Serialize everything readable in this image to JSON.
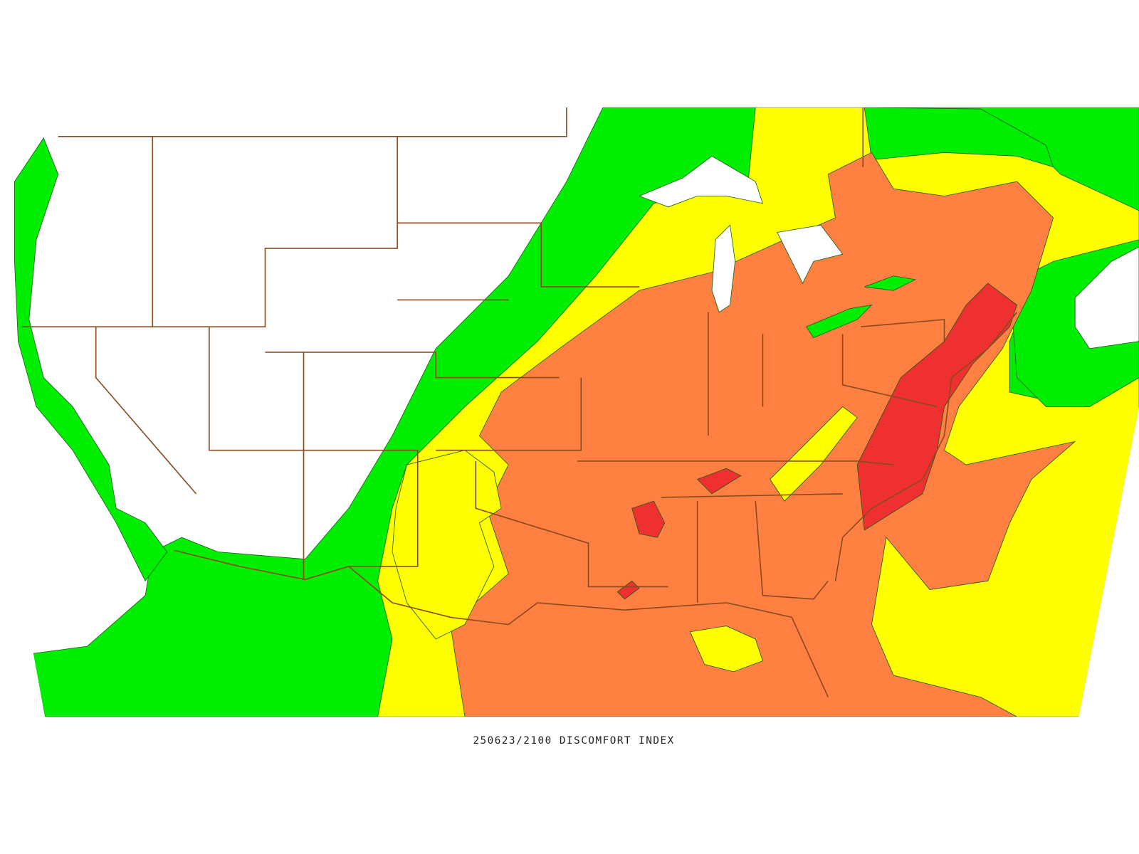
{
  "caption": "250623/2100 DISCOMFORT INDEX"
}
